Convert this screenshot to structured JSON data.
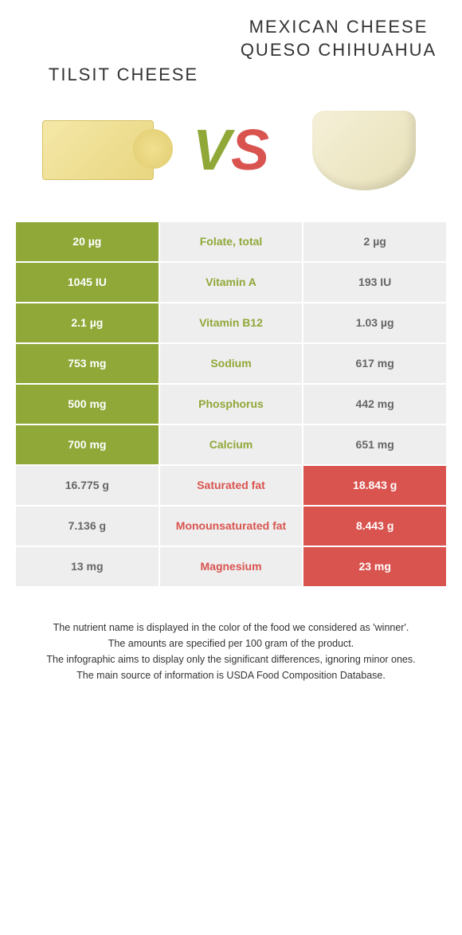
{
  "products": {
    "left": {
      "title": "TILSIT CHEESE",
      "color": "#8fa838"
    },
    "right": {
      "title": "MEXICAN CHEESE QUESO CHIHUAHUA",
      "color": "#d9534f"
    }
  },
  "vs": {
    "v": "V",
    "s": "S"
  },
  "rows": [
    {
      "nutrient": "Folate, total",
      "left": "20 µg",
      "right": "2 µg",
      "winner": "left"
    },
    {
      "nutrient": "Vitamin A",
      "left": "1045 IU",
      "right": "193 IU",
      "winner": "left"
    },
    {
      "nutrient": "Vitamin B12",
      "left": "2.1 µg",
      "right": "1.03 µg",
      "winner": "left"
    },
    {
      "nutrient": "Sodium",
      "left": "753 mg",
      "right": "617 mg",
      "winner": "left"
    },
    {
      "nutrient": "Phosphorus",
      "left": "500 mg",
      "right": "442 mg",
      "winner": "left"
    },
    {
      "nutrient": "Calcium",
      "left": "700 mg",
      "right": "651 mg",
      "winner": "left"
    },
    {
      "nutrient": "Saturated fat",
      "left": "16.775 g",
      "right": "18.843 g",
      "winner": "right"
    },
    {
      "nutrient": "Monounsaturated fat",
      "left": "7.136 g",
      "right": "8.443 g",
      "winner": "right"
    },
    {
      "nutrient": "Magnesium",
      "left": "13 mg",
      "right": "23 mg",
      "winner": "right"
    }
  ],
  "footer": {
    "line1": "The nutrient name is displayed in the color of the food we considered as 'winner'.",
    "line2": "The amounts are specified per 100 gram of the product.",
    "line3": "The infographic aims to display only the significant differences, ignoring minor ones.",
    "line4": "The main source of information is USDA Food Composition Database."
  },
  "colors": {
    "left_winner_bg": "#8fa838",
    "right_winner_bg": "#d9534f",
    "neutral_bg": "#eeeeee",
    "text_dark": "#333333"
  }
}
